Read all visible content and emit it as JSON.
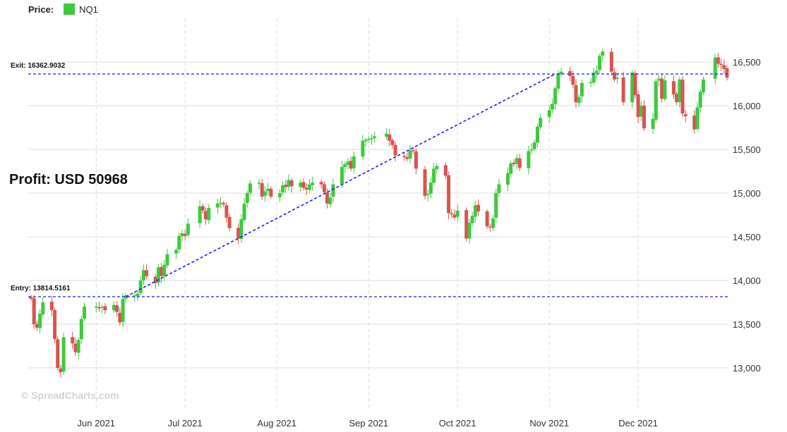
{
  "legend": {
    "label": "Price:",
    "series_name": "NQ1",
    "series_color": "#3ec93e"
  },
  "profit_text": "Profit: USD 50968",
  "watermark": "© SpreadCharts.com",
  "exit_label": "Exit: 16362.9032",
  "entry_label": "Entry: 13814.5161",
  "colors": {
    "up": "#3ec93e",
    "down": "#d9534f",
    "trade_line": "#1a1aff",
    "grid": "#dcdcdc"
  },
  "chart_data": {
    "type": "candlestick",
    "series_name": "NQ1",
    "x_ticks": [
      "Jun 2021",
      "Jul 2021",
      "Aug 2021",
      "Sep 2021",
      "Oct 2021",
      "Nov 2021",
      "Dec 2021"
    ],
    "y_ticks": [
      13000,
      13500,
      14000,
      14500,
      15000,
      15500,
      16000,
      16500
    ],
    "y_tick_labels": [
      "13,000",
      "13,500",
      "14,000",
      "14,500",
      "15,000",
      "15,500",
      "16,000",
      "16,500"
    ],
    "ylim": [
      12500,
      16750
    ],
    "grid": true,
    "entry": {
      "date": "2021-06-11",
      "price": 13814.5161
    },
    "exit": {
      "date": "2021-11-03",
      "price": 16362.9032
    },
    "profit_usd": 50968,
    "closes": [
      [
        "2021-05-10",
        13790
      ],
      [
        "2021-05-11",
        13500
      ],
      [
        "2021-05-12",
        13460
      ],
      [
        "2021-05-13",
        13620
      ],
      [
        "2021-05-14",
        13750
      ],
      [
        "2021-05-17",
        13660
      ],
      [
        "2021-05-18",
        13330
      ],
      [
        "2021-05-19",
        13000
      ],
      [
        "2021-05-20",
        12950
      ],
      [
        "2021-05-21",
        13350
      ],
      [
        "2021-05-24",
        13280
      ],
      [
        "2021-05-25",
        13180
      ],
      [
        "2021-05-26",
        13320
      ],
      [
        "2021-05-27",
        13560
      ],
      [
        "2021-05-28",
        13700
      ],
      [
        "2021-06-01",
        13700
      ],
      [
        "2021-06-02",
        13680
      ],
      [
        "2021-06-03",
        13700
      ],
      [
        "2021-06-04",
        13660
      ],
      [
        "2021-06-07",
        13720
      ],
      [
        "2021-06-08",
        13640
      ],
      [
        "2021-06-09",
        13520
      ],
      [
        "2021-06-10",
        13790
      ],
      [
        "2021-06-11",
        13830
      ],
      [
        "2021-06-14",
        13830
      ],
      [
        "2021-06-15",
        13850
      ],
      [
        "2021-06-16",
        14000
      ],
      [
        "2021-06-17",
        14120
      ],
      [
        "2021-06-18",
        14050
      ],
      [
        "2021-06-21",
        13970
      ],
      [
        "2021-06-22",
        14150
      ],
      [
        "2021-06-23",
        14050
      ],
      [
        "2021-06-24",
        14180
      ],
      [
        "2021-06-25",
        14300
      ],
      [
        "2021-06-28",
        14350
      ],
      [
        "2021-06-29",
        14510
      ],
      [
        "2021-06-30",
        14540
      ],
      [
        "2021-07-01",
        14510
      ],
      [
        "2021-07-02",
        14650
      ],
      [
        "2021-07-06",
        14850
      ],
      [
        "2021-07-07",
        14800
      ],
      [
        "2021-07-08",
        14700
      ],
      [
        "2021-07-09",
        14830
      ],
      [
        "2021-07-12",
        14880
      ],
      [
        "2021-07-13",
        14890
      ],
      [
        "2021-07-14",
        14870
      ],
      [
        "2021-07-15",
        14720
      ],
      [
        "2021-07-16",
        14600
      ],
      [
        "2021-07-19",
        14480
      ],
      [
        "2021-07-20",
        14700
      ],
      [
        "2021-07-21",
        14880
      ],
      [
        "2021-07-22",
        15000
      ],
      [
        "2021-07-23",
        15110
      ],
      [
        "2021-07-26",
        15120
      ],
      [
        "2021-07-27",
        14960
      ],
      [
        "2021-07-28",
        15020
      ],
      [
        "2021-07-29",
        15050
      ],
      [
        "2021-07-30",
        14960
      ],
      [
        "2021-08-02",
        15000
      ],
      [
        "2021-08-03",
        15090
      ],
      [
        "2021-08-04",
        15070
      ],
      [
        "2021-08-05",
        15150
      ],
      [
        "2021-08-06",
        15080
      ],
      [
        "2021-08-09",
        15120
      ],
      [
        "2021-08-10",
        15060
      ],
      [
        "2021-08-11",
        15040
      ],
      [
        "2021-08-12",
        15100
      ],
      [
        "2021-08-13",
        15120
      ],
      [
        "2021-08-16",
        15100
      ],
      [
        "2021-08-17",
        15010
      ],
      [
        "2021-08-18",
        14880
      ],
      [
        "2021-08-19",
        14950
      ],
      [
        "2021-08-20",
        15100
      ],
      [
        "2021-08-23",
        15300
      ],
      [
        "2021-08-24",
        15330
      ],
      [
        "2021-08-25",
        15360
      ],
      [
        "2021-08-26",
        15280
      ],
      [
        "2021-08-27",
        15420
      ],
      [
        "2021-08-30",
        15600
      ],
      [
        "2021-08-31",
        15610
      ],
      [
        "2021-09-01",
        15620
      ],
      [
        "2021-09-02",
        15630
      ],
      [
        "2021-09-03",
        15650
      ],
      [
        "2021-09-07",
        15680
      ],
      [
        "2021-09-08",
        15600
      ],
      [
        "2021-09-09",
        15550
      ],
      [
        "2021-09-10",
        15430
      ],
      [
        "2021-09-13",
        15420
      ],
      [
        "2021-09-14",
        15390
      ],
      [
        "2021-09-15",
        15490
      ],
      [
        "2021-09-16",
        15480
      ],
      [
        "2021-09-17",
        15280
      ],
      [
        "2021-09-20",
        14970
      ],
      [
        "2021-09-21",
        14990
      ],
      [
        "2021-09-22",
        15120
      ],
      [
        "2021-09-23",
        15280
      ],
      [
        "2021-09-24",
        15310
      ],
      [
        "2021-09-27",
        15200
      ],
      [
        "2021-09-28",
        14770
      ],
      [
        "2021-09-29",
        14760
      ],
      [
        "2021-09-30",
        14720
      ],
      [
        "2021-10-01",
        14800
      ],
      [
        "2021-10-04",
        14480
      ],
      [
        "2021-10-05",
        14660
      ],
      [
        "2021-10-06",
        14740
      ],
      [
        "2021-10-07",
        14860
      ],
      [
        "2021-10-08",
        14790
      ],
      [
        "2021-10-11",
        14620
      ],
      [
        "2021-10-12",
        14610
      ],
      [
        "2021-10-13",
        14710
      ],
      [
        "2021-10-14",
        15000
      ],
      [
        "2021-10-15",
        15100
      ],
      [
        "2021-10-18",
        15230
      ],
      [
        "2021-10-19",
        15340
      ],
      [
        "2021-10-20",
        15330
      ],
      [
        "2021-10-21",
        15400
      ],
      [
        "2021-10-22",
        15290
      ],
      [
        "2021-10-25",
        15480
      ],
      [
        "2021-10-26",
        15500
      ],
      [
        "2021-10-27",
        15580
      ],
      [
        "2021-10-28",
        15760
      ],
      [
        "2021-10-29",
        15860
      ],
      [
        "2021-11-01",
        15950
      ],
      [
        "2021-11-02",
        16020
      ],
      [
        "2021-11-03",
        16200
      ],
      [
        "2021-11-04",
        16370
      ],
      [
        "2021-11-05",
        16390
      ],
      [
        "2021-11-08",
        16340
      ],
      [
        "2021-11-09",
        16240
      ],
      [
        "2021-11-10",
        16040
      ],
      [
        "2021-11-11",
        16100
      ],
      [
        "2021-11-12",
        16260
      ],
      [
        "2021-11-15",
        16270
      ],
      [
        "2021-11-16",
        16380
      ],
      [
        "2021-11-17",
        16400
      ],
      [
        "2021-11-18",
        16570
      ],
      [
        "2021-11-19",
        16620
      ],
      [
        "2021-11-22",
        16390
      ],
      [
        "2021-11-23",
        16300
      ],
      [
        "2021-11-24",
        16320
      ],
      [
        "2021-11-26",
        16040
      ],
      [
        "2021-11-29",
        16380
      ],
      [
        "2021-11-30",
        16120
      ],
      [
        "2021-12-01",
        15870
      ],
      [
        "2021-12-02",
        16000
      ],
      [
        "2021-12-03",
        15740
      ],
      [
        "2021-12-06",
        15850
      ],
      [
        "2021-12-07",
        16280
      ],
      [
        "2021-12-08",
        16310
      ],
      [
        "2021-12-09",
        16080
      ],
      [
        "2021-12-10",
        16290
      ],
      [
        "2021-12-13",
        16130
      ],
      [
        "2021-12-14",
        16040
      ],
      [
        "2021-12-15",
        16300
      ],
      [
        "2021-12-16",
        15910
      ],
      [
        "2021-12-17",
        15880
      ],
      [
        "2021-12-20",
        15730
      ],
      [
        "2021-12-21",
        15980
      ],
      [
        "2021-12-22",
        16160
      ],
      [
        "2021-12-23",
        16300
      ],
      [
        "2021-12-27",
        16550
      ],
      [
        "2021-12-28",
        16480
      ],
      [
        "2021-12-29",
        16470
      ],
      [
        "2021-12-30",
        16420
      ],
      [
        "2021-12-31",
        16320
      ]
    ]
  }
}
